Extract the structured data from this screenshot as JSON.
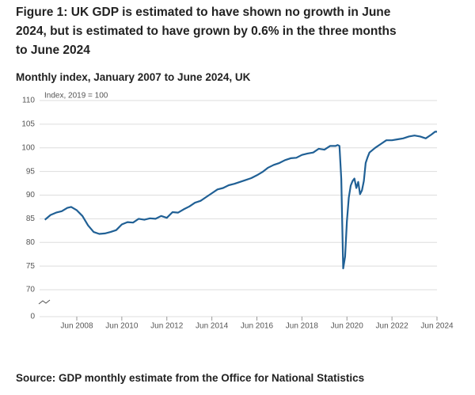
{
  "chart_data": {
    "type": "line",
    "title": "Figure 1: UK GDP is estimated to have shown no growth in June 2024, but is estimated to have grown by 0.6% in the three months to June 2024",
    "subtitle": "Monthly index, January 2007 to June 2024, UK",
    "y_label": "Index, 2019 = 100",
    "source": "Source: GDP monthly estimate from the Office for National Statistics",
    "x": [
      "Jan 2007",
      "Apr 2007",
      "Jul 2007",
      "Oct 2007",
      "Jan 2008",
      "Mar 2008",
      "Jun 2008",
      "Sep 2008",
      "Dec 2008",
      "Mar 2009",
      "Jun 2009",
      "Sep 2009",
      "Dec 2009",
      "Mar 2010",
      "Jun 2010",
      "Sep 2010",
      "Dec 2010",
      "Mar 2011",
      "Jun 2011",
      "Sep 2011",
      "Dec 2011",
      "Mar 2012",
      "Jun 2012",
      "Sep 2012",
      "Dec 2012",
      "Mar 2013",
      "Jun 2013",
      "Sep 2013",
      "Dec 2013",
      "Mar 2014",
      "Jun 2014",
      "Sep 2014",
      "Dec 2014",
      "Mar 2015",
      "Jun 2015",
      "Sep 2015",
      "Dec 2015",
      "Mar 2016",
      "Jun 2016",
      "Sep 2016",
      "Dec 2016",
      "Mar 2017",
      "Jun 2017",
      "Sep 2017",
      "Dec 2017",
      "Mar 2018",
      "Jun 2018",
      "Sep 2018",
      "Dec 2018",
      "Mar 2019",
      "Jun 2019",
      "Sep 2019",
      "Dec 2019",
      "Jan 2020",
      "Feb 2020",
      "Mar 2020",
      "Apr 2020",
      "May 2020",
      "Jun 2020",
      "Jul 2020",
      "Aug 2020",
      "Sep 2020",
      "Oct 2020",
      "Nov 2020",
      "Dec 2020",
      "Jan 2021",
      "Feb 2021",
      "Mar 2021",
      "Apr 2021",
      "May 2021",
      "Jun 2021",
      "Sep 2021",
      "Dec 2021",
      "Mar 2022",
      "Jun 2022",
      "Sep 2022",
      "Dec 2022",
      "Mar 2023",
      "Jun 2023",
      "Sep 2023",
      "Dec 2023",
      "Mar 2024",
      "May 2024",
      "Jun 2024"
    ],
    "series": [
      {
        "name": "GDP",
        "color": "#206095",
        "values": [
          84.8,
          85.8,
          86.3,
          86.6,
          87.3,
          87.5,
          86.8,
          85.6,
          83.6,
          82.2,
          81.8,
          81.9,
          82.2,
          82.6,
          83.8,
          84.3,
          84.2,
          85.0,
          84.8,
          85.1,
          85.0,
          85.6,
          85.2,
          86.4,
          86.3,
          87.0,
          87.6,
          88.4,
          88.8,
          89.6,
          90.4,
          91.2,
          91.5,
          92.1,
          92.4,
          92.8,
          93.2,
          93.6,
          94.2,
          94.9,
          95.8,
          96.4,
          96.8,
          97.4,
          97.8,
          97.9,
          98.5,
          98.8,
          99.0,
          99.8,
          99.6,
          100.4,
          100.4,
          100.6,
          100.4,
          93.4,
          74.5,
          77.0,
          84.5,
          89.5,
          92.0,
          93.0,
          93.5,
          91.5,
          92.8,
          90.2,
          91.0,
          93.0,
          96.8,
          98.0,
          99.0,
          100.0,
          100.8,
          101.6,
          101.6,
          101.8,
          102.0,
          102.4,
          102.6,
          102.4,
          102.0,
          102.8,
          103.4,
          103.4
        ]
      }
    ],
    "xlim": [
      "Jan 2007",
      "Jun 2024"
    ],
    "xticks": [
      "Jun 2008",
      "Jun 2010",
      "Jun 2012",
      "Jun 2014",
      "Jun 2016",
      "Jun 2018",
      "Jun 2020",
      "Jun 2022",
      "Jun 2024"
    ],
    "ylim": [
      0,
      110
    ],
    "yticks": [
      0,
      70,
      75,
      80,
      85,
      90,
      95,
      100,
      105,
      110
    ],
    "grid": true
  }
}
